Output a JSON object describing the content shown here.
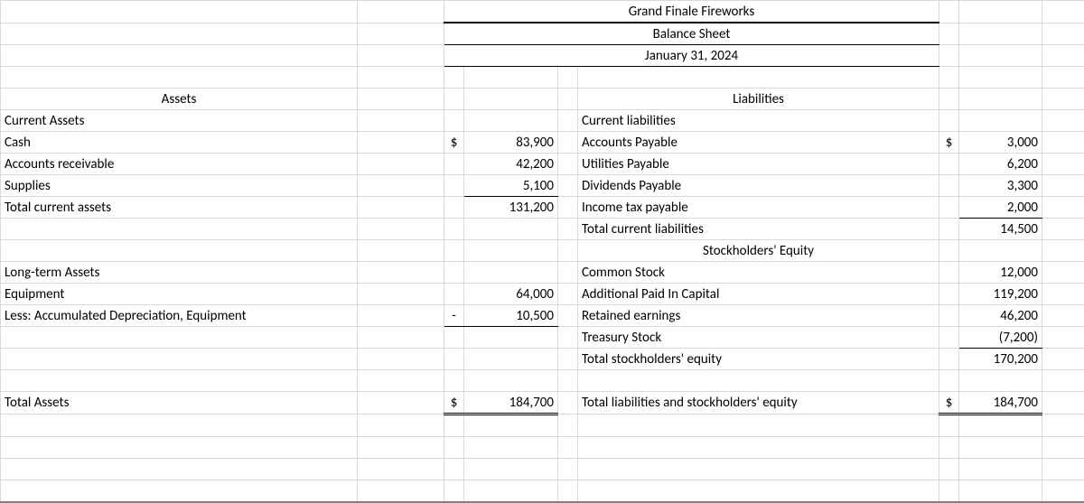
{
  "header": {
    "company": "Grand Finale Fireworks",
    "title": "Balance Sheet",
    "date": "January 31, 2024"
  },
  "left": {
    "section": "Assets",
    "current_hdr": "Current Assets",
    "cash": {
      "label": "Cash",
      "sym": "$",
      "val": "83,900"
    },
    "ar": {
      "label": "Accounts receivable",
      "val": "42,200"
    },
    "sup": {
      "label": "Supplies",
      "val": "5,100"
    },
    "tca": {
      "label": "Total current assets",
      "val": "131,200"
    },
    "lt_hdr": "Long-term Assets",
    "eq": {
      "label": "Equipment",
      "val": "64,000"
    },
    "ad": {
      "label": "Less: Accumulated Depreciation, Equipment",
      "neg": "-",
      "val": "10,500"
    },
    "ta": {
      "label": "Total Assets",
      "sym": "$",
      "val": "184,700"
    }
  },
  "right": {
    "section": "Liabilities",
    "cl_hdr": "Current liabilities",
    "ap": {
      "label": "Accounts Payable",
      "sym": "$",
      "val": "3,000"
    },
    "up": {
      "label": "Utilities Payable",
      "val": "6,200"
    },
    "dp": {
      "label": "Dividends Payable",
      "val": "3,300"
    },
    "itp": {
      "label": "Income tax payable",
      "val": "2,000"
    },
    "tcl": {
      "label": "Total current liabilities",
      "val": "14,500"
    },
    "se_hdr": "Stockholders' Equity",
    "cs": {
      "label": "Common Stock",
      "val": "12,000"
    },
    "apic": {
      "label": "Additional Paid In Capital",
      "val": "119,200"
    },
    "re": {
      "label": "Retained earnings",
      "val": "46,200"
    },
    "ts": {
      "label": "Treasury Stock",
      "val": "(7,200)"
    },
    "tse": {
      "label": "Total stockholders' equity",
      "val": "170,200"
    },
    "tot": {
      "label": "Total liabilities and stockholders' equity",
      "sym": "$",
      "val": "184,700"
    }
  },
  "style": {
    "grid_color": "#d9d9d9",
    "rule_color": "#000000",
    "bottom_rule": "#808080",
    "background": "#ffffff",
    "font": "Calibri",
    "fontsize_pt": 11
  }
}
